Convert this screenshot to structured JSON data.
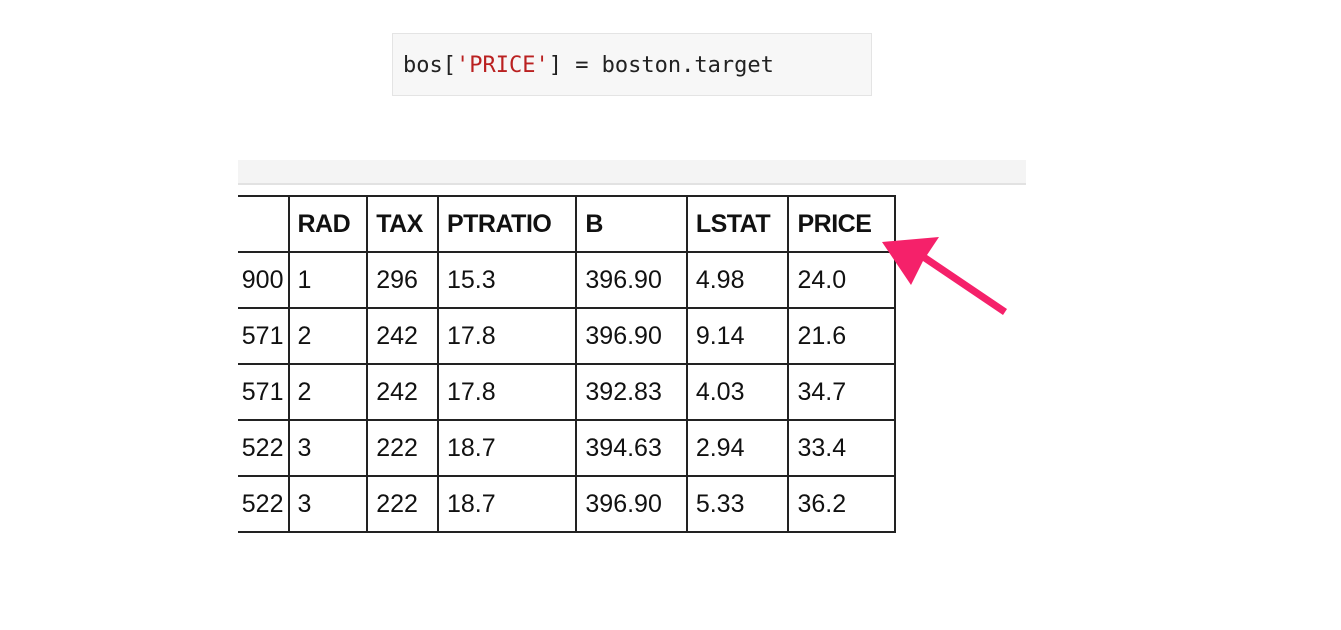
{
  "code_cell": {
    "tokens": [
      {
        "text": "bos[",
        "kind": "plain"
      },
      {
        "text": "'PRICE'",
        "kind": "string"
      },
      {
        "text": "] = boston.target",
        "kind": "plain"
      }
    ],
    "colors": {
      "plain": "#222222",
      "string": "#ba2121",
      "background": "#f7f7f7"
    }
  },
  "dataframe": {
    "columns": [
      "",
      "RAD",
      "TAX",
      "PTRATIO",
      "B",
      "LSTAT",
      "PRICE"
    ],
    "rows": [
      [
        "900",
        "1",
        "296",
        "15.3",
        "396.90",
        "4.98",
        "24.0"
      ],
      [
        "571",
        "2",
        "242",
        "17.8",
        "396.90",
        "9.14",
        "21.6"
      ],
      [
        "571",
        "2",
        "242",
        "17.8",
        "392.83",
        "4.03",
        "34.7"
      ],
      [
        "522",
        "3",
        "222",
        "18.7",
        "394.63",
        "2.94",
        "33.4"
      ],
      [
        "522",
        "3",
        "222",
        "18.7",
        "396.90",
        "5.33",
        "36.2"
      ]
    ]
  },
  "annotation": {
    "icon": "arrow-pointer-icon",
    "color": "#f5216a",
    "points_to": "PRICE"
  }
}
